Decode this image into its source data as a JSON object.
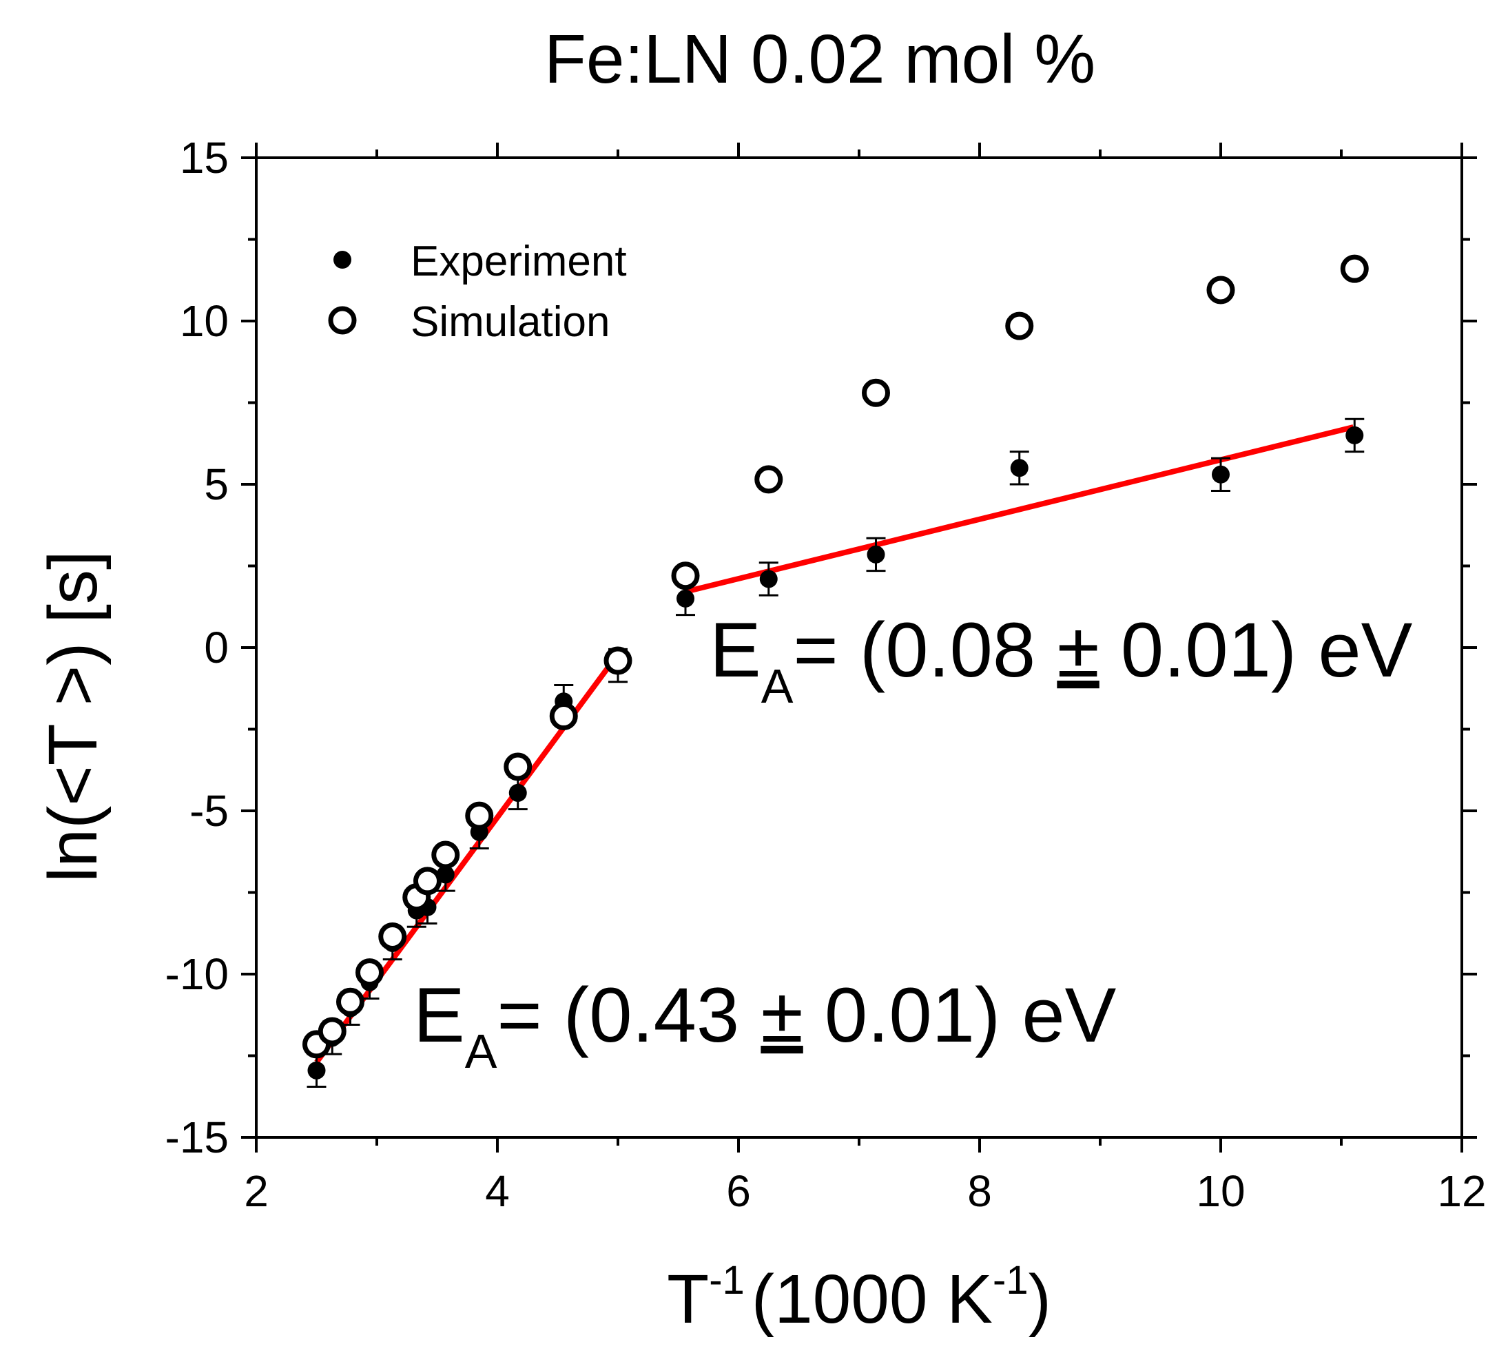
{
  "chart_data": {
    "type": "scatter",
    "title": "Fe:LN 0.02 mol %",
    "xlabel": "T-1 (1000 K-1)",
    "ylabel": "ln(<T>) [s]",
    "xlim": [
      2,
      12
    ],
    "ylim": [
      -15,
      15
    ],
    "x_ticks": [
      2,
      4,
      6,
      8,
      10,
      12
    ],
    "y_ticks": [
      -15,
      -10,
      -5,
      0,
      5,
      10,
      15
    ],
    "x_tick_labels": [
      "2",
      "4",
      "6",
      "8",
      "10",
      "12"
    ],
    "y_tick_labels": [
      "-15",
      "-10",
      "-5",
      "0",
      "5",
      "10",
      "15"
    ],
    "legend_position": "top-left",
    "series": [
      {
        "name": "Experiment",
        "marker": "filled-circle",
        "color": "#000000",
        "points": [
          {
            "x": 2.5,
            "y": -12.95,
            "err": 0.5
          },
          {
            "x": 2.63,
            "y": -11.95,
            "err": 0.5
          },
          {
            "x": 2.78,
            "y": -11.05,
            "err": 0.5
          },
          {
            "x": 2.94,
            "y": -10.25,
            "err": 0.5
          },
          {
            "x": 3.13,
            "y": -9.05,
            "err": 0.5
          },
          {
            "x": 3.33,
            "y": -8.05,
            "err": 0.5
          },
          {
            "x": 3.42,
            "y": -7.95,
            "err": 0.5
          },
          {
            "x": 3.57,
            "y": -6.95,
            "err": 0.5
          },
          {
            "x": 3.85,
            "y": -5.65,
            "err": 0.5
          },
          {
            "x": 4.17,
            "y": -4.45,
            "err": 0.5
          },
          {
            "x": 4.55,
            "y": -1.65,
            "err": 0.5
          },
          {
            "x": 5.0,
            "y": -0.55,
            "err": 0.5
          },
          {
            "x": 5.56,
            "y": 1.5,
            "err": 0.5
          },
          {
            "x": 6.25,
            "y": 2.1,
            "err": 0.5
          },
          {
            "x": 7.14,
            "y": 2.85,
            "err": 0.5
          },
          {
            "x": 8.33,
            "y": 5.5,
            "err": 0.5
          },
          {
            "x": 10.0,
            "y": 5.3,
            "err": 0.5
          },
          {
            "x": 11.11,
            "y": 6.5,
            "err": 0.5
          }
        ]
      },
      {
        "name": "Simulation",
        "marker": "open-circle",
        "color": "#000000",
        "points": [
          {
            "x": 2.5,
            "y": -12.15
          },
          {
            "x": 2.63,
            "y": -11.75
          },
          {
            "x": 2.78,
            "y": -10.85
          },
          {
            "x": 2.94,
            "y": -9.95
          },
          {
            "x": 3.13,
            "y": -8.85
          },
          {
            "x": 3.33,
            "y": -7.65
          },
          {
            "x": 3.42,
            "y": -7.15
          },
          {
            "x": 3.57,
            "y": -6.35
          },
          {
            "x": 3.85,
            "y": -5.15
          },
          {
            "x": 4.17,
            "y": -3.65
          },
          {
            "x": 4.55,
            "y": -2.1
          },
          {
            "x": 5.0,
            "y": -0.4
          },
          {
            "x": 5.56,
            "y": 2.2
          },
          {
            "x": 6.25,
            "y": 5.15
          },
          {
            "x": 7.14,
            "y": 7.8
          },
          {
            "x": 8.33,
            "y": 9.85
          },
          {
            "x": 10.0,
            "y": 10.95
          },
          {
            "x": 11.11,
            "y": 11.6
          }
        ]
      }
    ],
    "fit_lines": [
      {
        "name": "fit-low-temperature",
        "color": "#ff0000",
        "x": [
          2.5,
          4.95
        ],
        "y": [
          -12.7,
          -0.45
        ]
      },
      {
        "name": "fit-high-temperature",
        "color": "#ff0000",
        "x": [
          5.55,
          11.1
        ],
        "y": [
          1.7,
          6.75
        ]
      }
    ],
    "annotations": [
      {
        "main": "E",
        "sub": "A",
        "text": "= (0.08 ",
        "pm": "±",
        "rest": " 0.01) eV"
      },
      {
        "main": "E",
        "sub": "A",
        "text": "= (0.43 ",
        "pm": "±",
        "rest": " 0.01) eV"
      }
    ]
  },
  "labels": {
    "x_main": "T",
    "x_sup": "-1",
    "x_mid": "(1000 K",
    "x_sup2": "-1",
    "x_end": ")",
    "y_label": "ln(<T >) [s]"
  }
}
